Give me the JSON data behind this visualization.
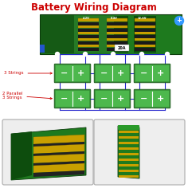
{
  "title": "Battery Wiring Diagram",
  "title_color": "#cc0000",
  "title_fontsize": 8.5,
  "bg_color": "#ffffff",
  "board_color": "#1e7a1e",
  "board_border": "#0a3a0a",
  "battery_fill": "#4db84d",
  "battery_border": "#2a7a2a",
  "wire_color": "#2222cc",
  "row1_label": "3 Strings",
  "row2_label": "2 Parallel\n3 Strings",
  "label_color": "#cc0000",
  "label_fontsize": 4.0,
  "current_label": "20A",
  "voltage_labels": [
    "4.2V",
    "8.4V",
    "12.6V"
  ],
  "photo_bg": "#eeeeee",
  "photo_border": "#aaaaaa"
}
